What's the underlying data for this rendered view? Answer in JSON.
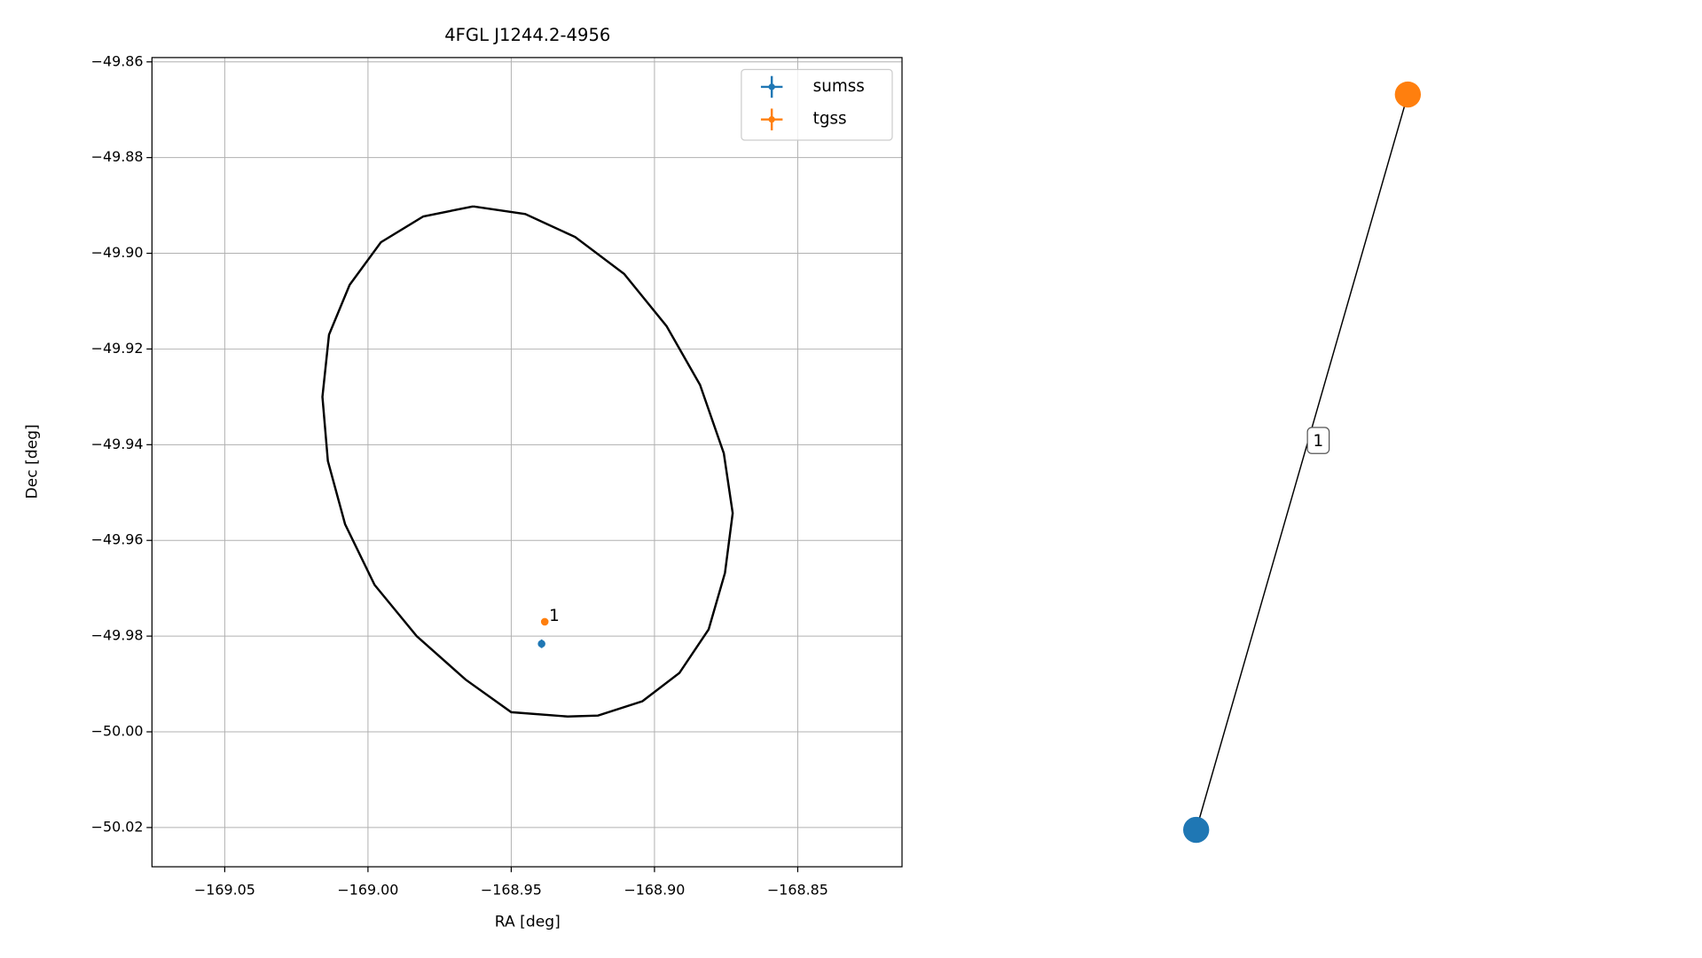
{
  "chart_data": [
    {
      "type": "errorbar",
      "title": "4FGL J1244.2-4956",
      "xlabel": "RA [deg]",
      "ylabel": "Dec [deg]",
      "xlim": [
        -169.0754,
        -168.8136
      ],
      "ylim": [
        -50.0282,
        -49.8591
      ],
      "xticks": [
        {
          "value": -169.05,
          "label": "−169.05"
        },
        {
          "value": -169.0,
          "label": "−169.00"
        },
        {
          "value": -168.95,
          "label": "−168.95"
        },
        {
          "value": -168.9,
          "label": "−168.90"
        },
        {
          "value": -168.85,
          "label": "−168.85"
        }
      ],
      "yticks": [
        {
          "value": -49.86,
          "label": "−49.86"
        },
        {
          "value": -49.88,
          "label": "−49.88"
        },
        {
          "value": -49.9,
          "label": "−49.90"
        },
        {
          "value": -49.92,
          "label": "−49.92"
        },
        {
          "value": -49.94,
          "label": "−49.94"
        },
        {
          "value": -49.96,
          "label": "−49.96"
        },
        {
          "value": -49.98,
          "label": "−49.98"
        },
        {
          "value": -50.0,
          "label": "−50.00"
        },
        {
          "value": -50.02,
          "label": "−50.02"
        }
      ],
      "grid": true,
      "legend": "upper right",
      "series": [
        {
          "name": "sumss",
          "color": "#1f77b4",
          "x": [
            -168.9394
          ],
          "values": [
            -49.9816
          ],
          "yerr": [
            0.0009
          ]
        },
        {
          "name": "tgss",
          "color": "#ff7f0e",
          "x": [
            -168.9383
          ],
          "values": [
            -49.977
          ],
          "point_labels": [
            "1"
          ]
        }
      ],
      "ellipse": {
        "color": "#000000",
        "x": [
          -168.9633,
          -168.9451,
          -168.9277,
          -168.9106,
          -168.8958,
          -168.8841,
          -168.8758,
          -168.8727,
          -168.8754,
          -168.8811,
          -168.8913,
          -168.9042,
          -168.9197,
          -168.9303,
          -168.95,
          -168.9659,
          -168.983,
          -168.9977,
          -169.008,
          -169.014,
          -169.0159,
          -169.0136,
          -169.0064,
          -168.9955,
          -168.9807,
          -168.9633
        ],
        "y": [
          -49.8902,
          -49.8918,
          -49.8966,
          -49.9043,
          -49.9152,
          -49.9275,
          -49.9418,
          -49.9543,
          -49.9668,
          -49.9786,
          -49.9877,
          -49.9936,
          -49.9966,
          -49.9968,
          -49.9959,
          -49.9891,
          -49.98,
          -49.9693,
          -49.9566,
          -49.9434,
          -49.93,
          -49.917,
          -49.9066,
          -49.8977,
          -49.8923,
          -49.8902
        ]
      }
    },
    {
      "type": "graph",
      "nodes": [
        {
          "color": "#1f77b4"
        },
        {
          "color": "#ff7f0e"
        }
      ],
      "edges": [
        {
          "source": 0,
          "target": 1,
          "label": "1"
        }
      ]
    }
  ]
}
